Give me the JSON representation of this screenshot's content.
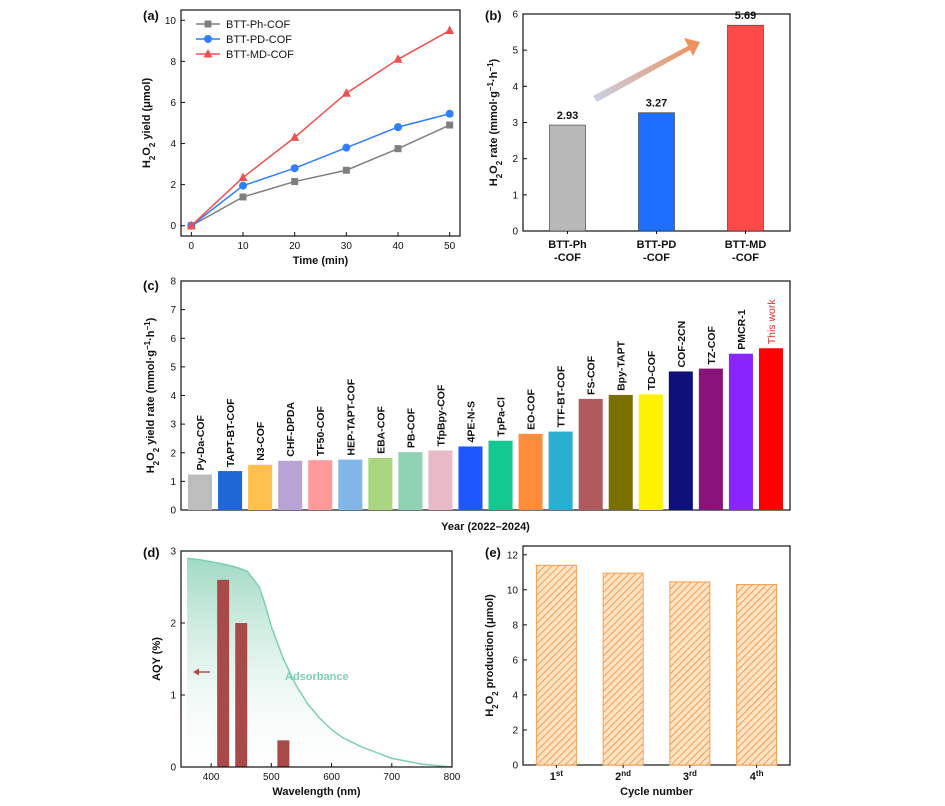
{
  "chart_data": [
    {
      "panel": "(a)",
      "type": "line",
      "xlabel": "Time (min)",
      "ylabel_parts": [
        "H",
        "2",
        "O",
        "2",
        " yield (μmol)"
      ],
      "x": [
        0,
        10,
        20,
        30,
        40,
        50
      ],
      "xlim": [
        -2,
        52
      ],
      "ylim": [
        -0.5,
        10.5
      ],
      "xticks": [
        0,
        10,
        20,
        30,
        40,
        50
      ],
      "yticks": [
        0,
        2,
        4,
        6,
        8,
        10
      ],
      "legend_position": "top-left",
      "series": [
        {
          "name": "BTT-Ph-COF",
          "color": "#7f7f7f",
          "marker": "square",
          "values": [
            0.0,
            1.4,
            2.15,
            2.7,
            3.75,
            4.9
          ]
        },
        {
          "name": "BTT-PD-COF",
          "color": "#2f7fff",
          "marker": "circle",
          "values": [
            0.0,
            1.95,
            2.8,
            3.8,
            4.8,
            5.45
          ]
        },
        {
          "name": "BTT-MD-COF",
          "color": "#f0504f",
          "marker": "triangle",
          "values": [
            0.0,
            2.35,
            4.3,
            6.45,
            8.1,
            9.5
          ]
        }
      ]
    },
    {
      "panel": "(b)",
      "type": "bar",
      "ylabel_parts": [
        "H",
        "2",
        "O",
        "2",
        " rate (mmol·g",
        "−1",
        "·h",
        "−1",
        ")"
      ],
      "categories": [
        [
          "BTT-Ph",
          "-COF"
        ],
        [
          "BTT-PD",
          "-COF"
        ],
        [
          "BTT-MD",
          "-COF"
        ]
      ],
      "values": [
        2.93,
        3.27,
        5.69
      ],
      "value_labels": [
        "2.93",
        "3.27",
        "5.69"
      ],
      "colors": [
        "#b8b8b8",
        "#1f6fff",
        "#ff4a4a"
      ],
      "ylim": [
        0,
        6
      ],
      "yticks": [
        0,
        1,
        2,
        3,
        4,
        5,
        6
      ]
    },
    {
      "panel": "(c)",
      "type": "bar",
      "xlabel": "Year (2022–2024)",
      "ylabel_parts": [
        "H",
        "2",
        "O",
        "2",
        " yield rate (mmol·g",
        "−1",
        "·h",
        "−1",
        ")"
      ],
      "categories": [
        "Py-Da-COF",
        "TAPT-BT-COF",
        "N3-COF",
        "CHF-DPDA",
        "TF50-COF",
        "HEP-TAPT-COF",
        "EBA-COF",
        "PB-COF",
        "TfpBpy-COF",
        "4PE-N-S",
        "TpPa-Cl",
        "EO-COF",
        "TTF-BT-COF",
        "FS-COF",
        "Bpy-TAPT",
        "TD-COF",
        "COF-2CN",
        "TZ-COF",
        "PMCR-1",
        "This work"
      ],
      "values": [
        1.24,
        1.36,
        1.58,
        1.72,
        1.74,
        1.76,
        1.82,
        2.02,
        2.08,
        2.22,
        2.42,
        2.66,
        2.74,
        3.88,
        4.02,
        4.04,
        4.84,
        4.94,
        5.46,
        5.65
      ],
      "colors": [
        "#bdbdbd",
        "#1f66d6",
        "#ffc04d",
        "#b9a3d6",
        "#ff9a9a",
        "#82b5e8",
        "#a9d67e",
        "#8fd1b3",
        "#e8b9c6",
        "#1f57ff",
        "#14c98f",
        "#ff8c3a",
        "#2aaed1",
        "#b05a5e",
        "#7a6f00",
        "#fff200",
        "#10107a",
        "#8a137a",
        "#8a25ff",
        "#ff0000"
      ],
      "highlight_label_color": "#e03030",
      "ylim": [
        0,
        8
      ],
      "yticks": [
        0,
        1,
        2,
        3,
        4,
        5,
        6,
        7,
        8
      ]
    },
    {
      "panel": "(d)",
      "type": "bar",
      "xlabel": "Wavelength (nm)",
      "ylabel": "AQY (%)",
      "annotation": "Adsorbance",
      "bars_x": [
        420,
        450,
        520
      ],
      "bars_values": [
        2.6,
        2.0,
        0.37
      ],
      "bar_color": "#a84a4a",
      "adsorbance_color": "#7fcfb2",
      "adsorbance_x": [
        360,
        380,
        400,
        420,
        440,
        460,
        480,
        490,
        500,
        520,
        540,
        560,
        580,
        600,
        620,
        650,
        700,
        750,
        800
      ],
      "adsorbance_y": [
        2.9,
        2.88,
        2.85,
        2.82,
        2.78,
        2.72,
        2.5,
        2.25,
        1.95,
        1.5,
        1.15,
        0.88,
        0.68,
        0.52,
        0.4,
        0.28,
        0.12,
        0.04,
        0.0
      ],
      "xlim": [
        350,
        800
      ],
      "ylim": [
        0,
        3
      ],
      "xticks": [
        400,
        500,
        600,
        700,
        800
      ],
      "yticks": [
        0,
        1,
        2,
        3
      ]
    },
    {
      "panel": "(e)",
      "type": "bar",
      "xlabel": "Cycle number",
      "ylabel_parts": [
        "H",
        "2",
        "O",
        "2",
        " production (μmol)"
      ],
      "categories": [
        [
          "1",
          "st"
        ],
        [
          "2",
          "nd"
        ],
        [
          "3",
          "rd"
        ],
        [
          "4",
          "th"
        ]
      ],
      "values": [
        11.4,
        10.95,
        10.45,
        10.3
      ],
      "bar_color": "#f5a050",
      "ylim": [
        0,
        12.5
      ],
      "yticks": [
        0,
        2,
        4,
        6,
        8,
        10,
        12
      ]
    }
  ]
}
